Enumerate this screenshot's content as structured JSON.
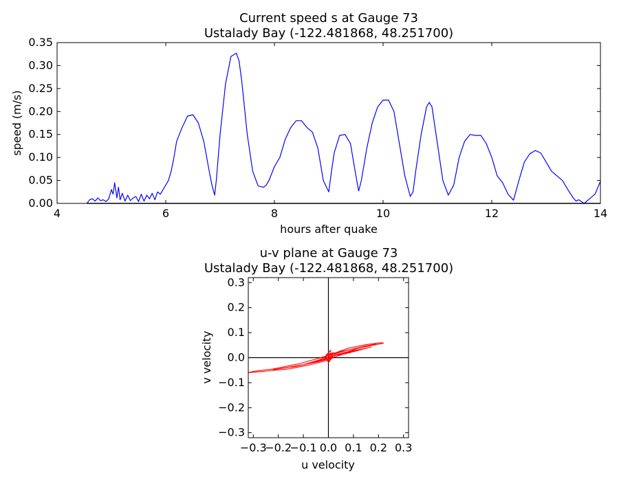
{
  "chart_data": [
    {
      "type": "line",
      "title_lines": [
        "Current speed s at Gauge 73",
        "Ustalady Bay  (-122.481868, 48.251700)"
      ],
      "xlabel": "hours after quake",
      "ylabel": "speed (m/s)",
      "xlim": [
        4,
        14
      ],
      "ylim": [
        0,
        0.35
      ],
      "xticks": [
        4,
        6,
        8,
        10,
        12,
        14
      ],
      "xtick_labels": [
        "4",
        "6",
        "8",
        "10",
        "12",
        "14"
      ],
      "yticks": [
        0,
        0.05,
        0.1,
        0.15,
        0.2,
        0.25,
        0.3,
        0.35
      ],
      "ytick_labels": [
        "0.00",
        "0.05",
        "0.10",
        "0.15",
        "0.20",
        "0.25",
        "0.30",
        "0.35"
      ],
      "grid": false,
      "line_color": "#0000ff",
      "baseline_color": "#000000",
      "series": [
        {
          "x": [
            4.55,
            4.6,
            4.65,
            4.7,
            4.75,
            4.8,
            4.85,
            4.9,
            4.95,
            5.0,
            5.03,
            5.06,
            5.1,
            5.13,
            5.16,
            5.2,
            5.25,
            5.3,
            5.35,
            5.4,
            5.45,
            5.5,
            5.55,
            5.6,
            5.65,
            5.7,
            5.75,
            5.8,
            5.85,
            5.9,
            5.95,
            6.0,
            6.05,
            6.1,
            6.15,
            6.2,
            6.3,
            6.4,
            6.5,
            6.6,
            6.7,
            6.8,
            6.85,
            6.9,
            6.93,
            7.0,
            7.1,
            7.2,
            7.3,
            7.35,
            7.4,
            7.5,
            7.6,
            7.7,
            7.8,
            7.85,
            7.9,
            8.0,
            8.1,
            8.2,
            8.3,
            8.4,
            8.5,
            8.6,
            8.7,
            8.8,
            8.9,
            9.0,
            9.05,
            9.1,
            9.2,
            9.3,
            9.4,
            9.5,
            9.55,
            9.6,
            9.7,
            9.8,
            9.9,
            10.0,
            10.1,
            10.2,
            10.3,
            10.4,
            10.5,
            10.55,
            10.6,
            10.7,
            10.8,
            10.85,
            10.9,
            11.0,
            11.1,
            11.2,
            11.3,
            11.4,
            11.5,
            11.6,
            11.7,
            11.8,
            11.9,
            12.0,
            12.1,
            12.2,
            12.3,
            12.4,
            12.5,
            12.6,
            12.7,
            12.8,
            12.9,
            13.0,
            13.1,
            13.2,
            13.3,
            13.4,
            13.5,
            13.55,
            13.6,
            13.7,
            13.8,
            13.9,
            14.0
          ],
          "y": [
            0.0,
            0.008,
            0.01,
            0.005,
            0.012,
            0.006,
            0.008,
            0.004,
            0.01,
            0.03,
            0.02,
            0.045,
            0.012,
            0.035,
            0.008,
            0.022,
            0.005,
            0.018,
            0.006,
            0.012,
            0.015,
            0.004,
            0.02,
            0.005,
            0.018,
            0.01,
            0.022,
            0.008,
            0.025,
            0.02,
            0.03,
            0.04,
            0.05,
            0.07,
            0.1,
            0.135,
            0.165,
            0.19,
            0.193,
            0.175,
            0.135,
            0.07,
            0.04,
            0.018,
            0.05,
            0.15,
            0.26,
            0.32,
            0.327,
            0.31,
            0.265,
            0.15,
            0.07,
            0.038,
            0.035,
            0.04,
            0.05,
            0.08,
            0.1,
            0.14,
            0.165,
            0.18,
            0.18,
            0.165,
            0.155,
            0.12,
            0.05,
            0.025,
            0.07,
            0.11,
            0.148,
            0.15,
            0.13,
            0.06,
            0.027,
            0.05,
            0.12,
            0.175,
            0.21,
            0.225,
            0.225,
            0.2,
            0.13,
            0.06,
            0.015,
            0.025,
            0.07,
            0.15,
            0.21,
            0.22,
            0.21,
            0.13,
            0.05,
            0.018,
            0.04,
            0.1,
            0.135,
            0.15,
            0.148,
            0.148,
            0.13,
            0.1,
            0.06,
            0.045,
            0.02,
            0.007,
            0.05,
            0.09,
            0.108,
            0.115,
            0.11,
            0.09,
            0.07,
            0.06,
            0.05,
            0.03,
            0.012,
            0.005,
            0.008,
            0.0,
            0.01,
            0.02,
            0.048
          ]
        }
      ]
    },
    {
      "type": "line",
      "title_lines": [
        "u-v plane at Gauge 73",
        "Ustalady Bay  (-122.481868, 48.251700)"
      ],
      "xlabel": "u velocity",
      "ylabel": "v velocity",
      "xlim": [
        -0.32,
        0.32
      ],
      "ylim": [
        -0.32,
        0.32
      ],
      "xticks": [
        -0.3,
        -0.2,
        -0.1,
        0.0,
        0.1,
        0.2,
        0.3
      ],
      "xtick_labels": [
        "−0.3",
        "−0.2",
        "−0.1",
        "0.0",
        "0.1",
        "0.2",
        "0.3"
      ],
      "yticks": [
        -0.3,
        -0.2,
        -0.1,
        0.0,
        0.1,
        0.2,
        0.3
      ],
      "ytick_labels": [
        "−0.3",
        "−0.2",
        "−0.1",
        "0.0",
        "0.1",
        "0.2",
        "0.3"
      ],
      "grid": false,
      "line_color": "#ff0000",
      "axis_line_color": "#000000",
      "series": [
        {
          "u": [
            0.0,
            0.01,
            -0.01,
            0.02,
            -0.005,
            0.015,
            0.0,
            0.03,
            0.08,
            0.15,
            0.21,
            0.22,
            0.18,
            0.1,
            0.03,
            -0.03,
            -0.12,
            -0.22,
            -0.3,
            -0.32,
            -0.26,
            -0.16,
            -0.08,
            -0.02,
            0.02,
            0.06,
            0.12,
            0.17,
            0.19,
            0.14,
            0.06,
            0.0,
            -0.04,
            -0.1,
            -0.18,
            -0.22,
            -0.17,
            -0.1,
            -0.04,
            0.0,
            0.04,
            0.1,
            0.16,
            0.17,
            0.12,
            0.05,
            0.0,
            -0.03,
            -0.07,
            -0.13,
            -0.15,
            -0.1,
            -0.04,
            0.0,
            0.03,
            0.07,
            0.12,
            0.14,
            0.09,
            0.03,
            -0.01,
            -0.04,
            -0.08,
            -0.06,
            -0.02,
            0.01,
            0.03,
            0.02,
            0.0,
            -0.01,
            0.01,
            0.0
          ],
          "v": [
            0.0,
            0.03,
            0.01,
            0.02,
            -0.015,
            0.01,
            -0.02,
            0.02,
            0.038,
            0.052,
            0.06,
            0.058,
            0.05,
            0.035,
            0.02,
            0.0,
            -0.025,
            -0.045,
            -0.055,
            -0.06,
            -0.055,
            -0.045,
            -0.03,
            -0.015,
            0.0,
            0.018,
            0.038,
            0.05,
            0.054,
            0.045,
            0.025,
            0.008,
            -0.01,
            -0.028,
            -0.042,
            -0.048,
            -0.04,
            -0.028,
            -0.016,
            -0.005,
            0.008,
            0.024,
            0.04,
            0.042,
            0.032,
            0.015,
            0.002,
            -0.01,
            -0.022,
            -0.035,
            -0.038,
            -0.028,
            -0.014,
            0.0,
            0.012,
            0.022,
            0.032,
            0.036,
            0.024,
            0.01,
            -0.004,
            -0.014,
            -0.022,
            -0.018,
            -0.006,
            0.004,
            0.012,
            0.008,
            0.0,
            -0.004,
            0.006,
            0.0
          ]
        }
      ]
    }
  ]
}
